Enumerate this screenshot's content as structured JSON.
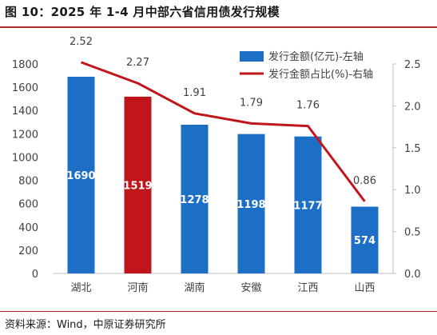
{
  "figure": {
    "title": "图 10：2025 年 1-4 月中部六省信用债发行规模",
    "source": "资料来源：Wind，中原证券研究所"
  },
  "colors": {
    "bar_default": "#1d6fc6",
    "bar_highlight": "#c0161b",
    "line": "#c0161b",
    "accent_rule": "#a7322a"
  },
  "chart_data": {
    "type": "bar",
    "categories": [
      "湖北",
      "河南",
      "湖南",
      "安徽",
      "江西",
      "山西"
    ],
    "highlight_category": "河南",
    "series": [
      {
        "name": "发行金额(亿元)-左轴",
        "type": "bar",
        "axis": "left",
        "values": [
          1690,
          1519,
          1278,
          1198,
          1177,
          574
        ]
      },
      {
        "name": "发行金额占比(%)-右轴",
        "type": "line",
        "axis": "right",
        "values": [
          2.52,
          2.27,
          1.91,
          1.79,
          1.76,
          0.86
        ]
      }
    ],
    "y_left": {
      "min": 0,
      "max": 1800,
      "step": 200,
      "ticks": [
        "0",
        "200",
        "400",
        "600",
        "800",
        "1000",
        "1200",
        "1400",
        "1600",
        "1800"
      ]
    },
    "y_right": {
      "min": 0,
      "max": 2.5,
      "step": 0.5,
      "ticks": [
        "0.0",
        "0.5",
        "1.0",
        "1.5",
        "2.0",
        "2.5"
      ]
    },
    "grid": false,
    "legend_position": "top-right"
  }
}
